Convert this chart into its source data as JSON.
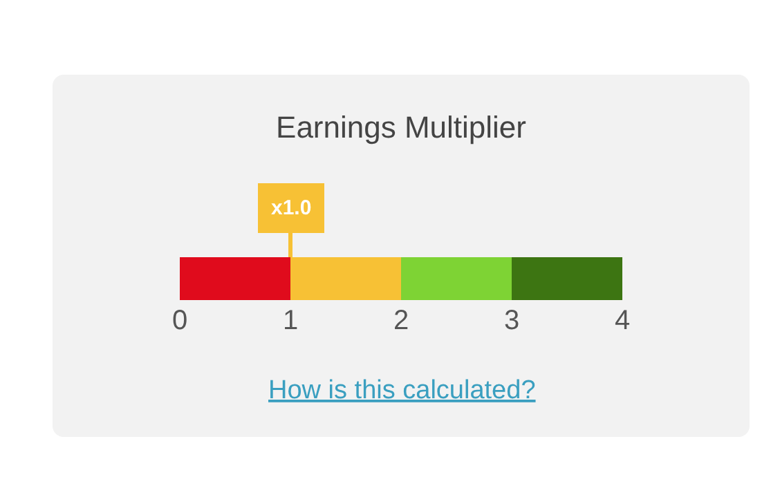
{
  "chart_data": {
    "type": "bar",
    "orientation": "horizontal",
    "stacked": true,
    "title": "Earnings Multiplier",
    "categories": [
      null
    ],
    "series": [
      {
        "color": "#e00b1c",
        "values": [
          1
        ]
      },
      {
        "color": "#f7c135",
        "values": [
          1
        ]
      },
      {
        "color": "#7ed334",
        "values": [
          1
        ]
      },
      {
        "color": "#3d7512",
        "values": [
          1
        ]
      }
    ],
    "xlim": [
      0,
      4
    ],
    "xticks": [
      0,
      1,
      2,
      3,
      4
    ],
    "annotations": [
      {
        "text": "x1.0",
        "x": 1
      },
      "How is this calculated?"
    ]
  }
}
